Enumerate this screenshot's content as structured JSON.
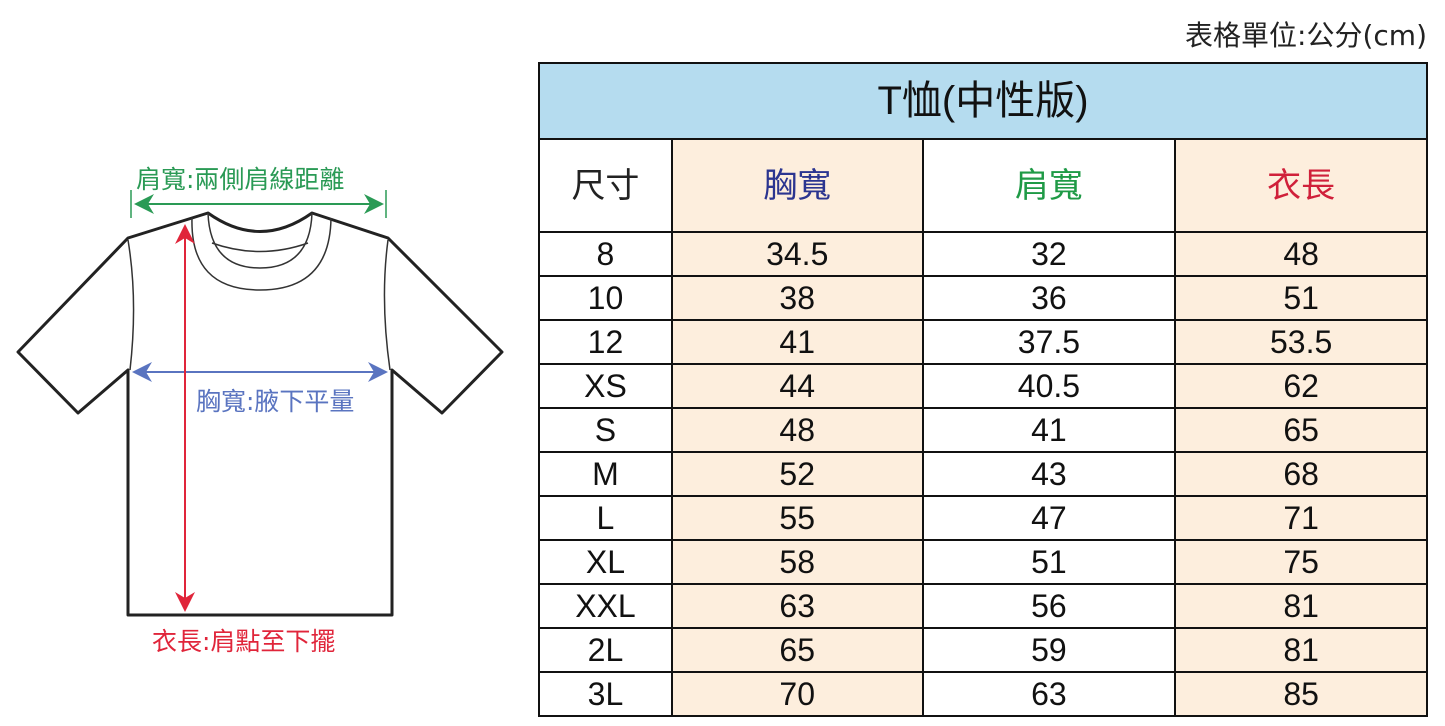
{
  "unit_note": "表格單位:公分(cm)",
  "diagram": {
    "shoulder_label": "肩寬:兩側肩線距離",
    "chest_label": "胸寬:腋下平量",
    "length_label": "衣長:肩點至下擺",
    "colors": {
      "shoulder": "#2a9a55",
      "chest": "#5a74c0",
      "length": "#e0253a"
    }
  },
  "table": {
    "title": "T恤(中性版)",
    "headers": [
      "尺寸",
      "胸寬",
      "肩寬",
      "衣長"
    ],
    "header_colors": [
      "#222222",
      "#2b3590",
      "#1f9a46",
      "#d0203a"
    ],
    "rows": [
      [
        "8",
        "34.5",
        "32",
        "48"
      ],
      [
        "10",
        "38",
        "36",
        "51"
      ],
      [
        "12",
        "41",
        "37.5",
        "53.5"
      ],
      [
        "XS",
        "44",
        "40.5",
        "62"
      ],
      [
        "S",
        "48",
        "41",
        "65"
      ],
      [
        "M",
        "52",
        "43",
        "68"
      ],
      [
        "L",
        "55",
        "47",
        "71"
      ],
      [
        "XL",
        "58",
        "51",
        "75"
      ],
      [
        "XXL",
        "63",
        "56",
        "81"
      ],
      [
        "2L",
        "65",
        "59",
        "81"
      ],
      [
        "3L",
        "70",
        "63",
        "85"
      ]
    ]
  }
}
